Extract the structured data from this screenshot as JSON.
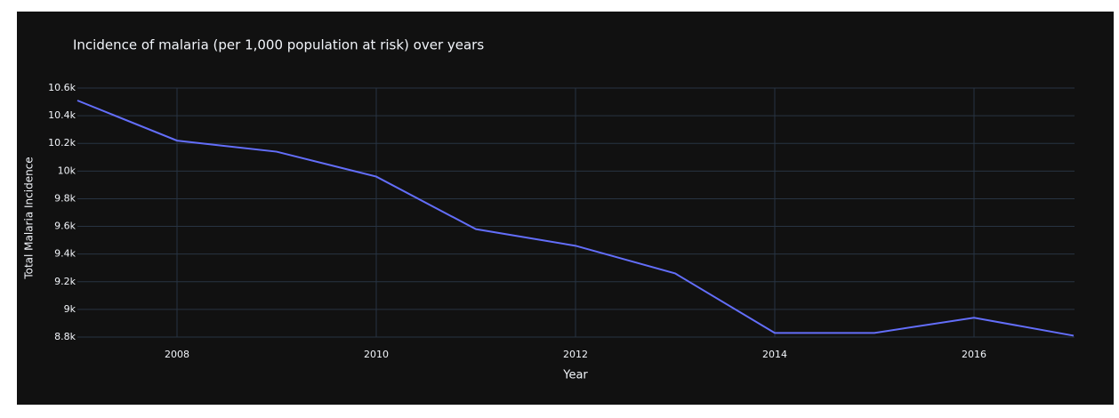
{
  "chart_data": {
    "type": "line",
    "title": "Incidence of malaria (per 1,000 population at risk) over years",
    "x_label": "Year",
    "y_label": "Total Malaria Incidence",
    "x": [
      2007,
      2008,
      2009,
      2010,
      2011,
      2012,
      2013,
      2014,
      2015,
      2016,
      2017
    ],
    "series": [
      {
        "name": "Total Malaria Incidence",
        "color": "#636efa",
        "values": [
          10510,
          10220,
          10140,
          9960,
          9580,
          9460,
          9260,
          8830,
          8830,
          8940,
          8810
        ]
      }
    ],
    "xlim": [
      2007,
      2017
    ],
    "xticks": [
      2008,
      2010,
      2012,
      2014,
      2016
    ],
    "ylim": [
      8800,
      10600
    ],
    "yticks": [
      {
        "value": 8800,
        "label": "8.8k"
      },
      {
        "value": 9000,
        "label": "9k"
      },
      {
        "value": 9200,
        "label": "9.2k"
      },
      {
        "value": 9400,
        "label": "9.4k"
      },
      {
        "value": 9600,
        "label": "9.6k"
      },
      {
        "value": 9800,
        "label": "9.8k"
      },
      {
        "value": 10000,
        "label": "10k"
      },
      {
        "value": 10200,
        "label": "10.2k"
      },
      {
        "value": 10400,
        "label": "10.4k"
      },
      {
        "value": 10600,
        "label": "10.6k"
      }
    ],
    "grid": true
  }
}
